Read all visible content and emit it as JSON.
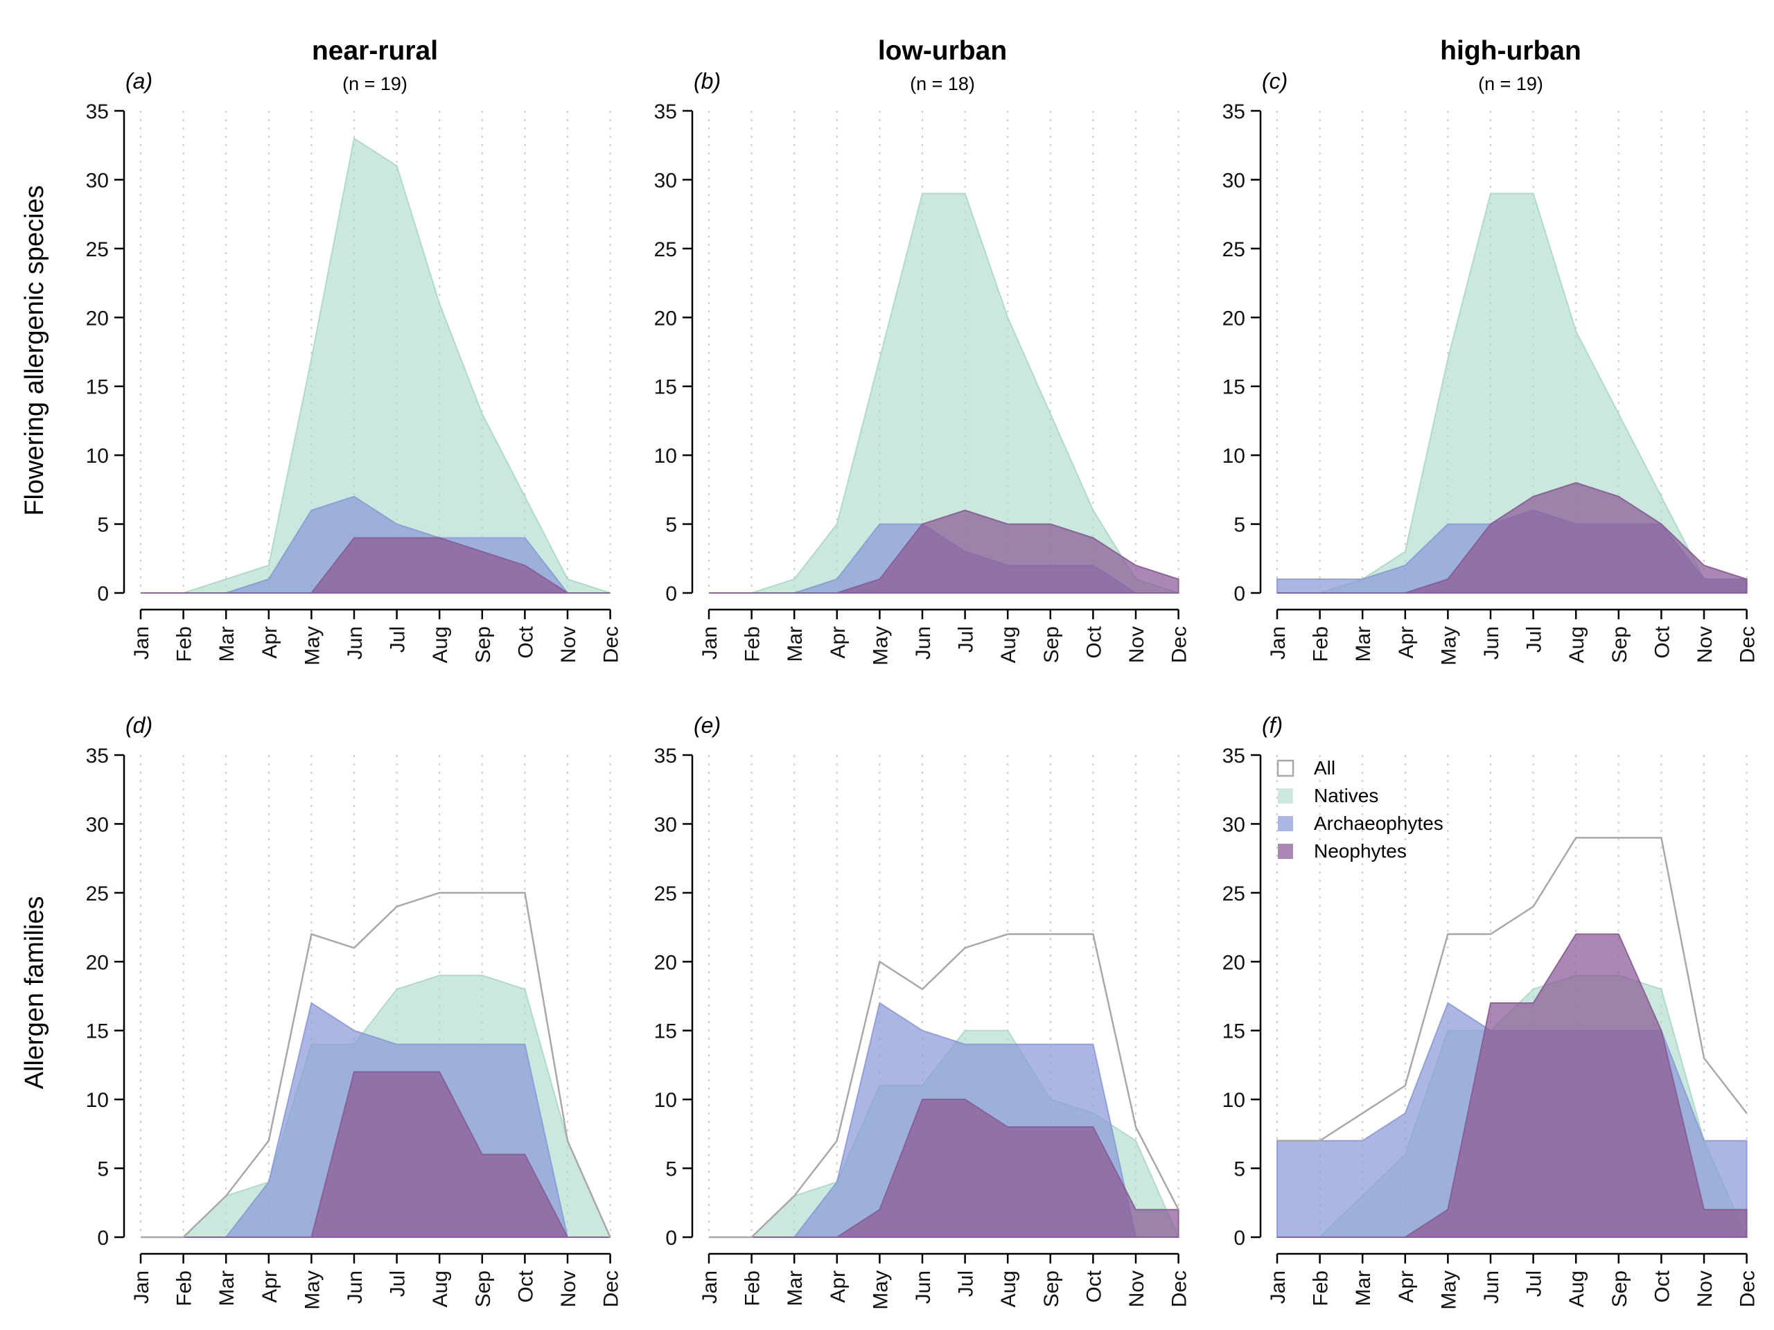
{
  "figure": {
    "row_labels": [
      "Flowering allergenic species",
      "Allergen families"
    ],
    "column_titles": [
      {
        "title": "near-rural",
        "subtitle": "(n = 19)"
      },
      {
        "title": "low-urban",
        "subtitle": "(n = 18)"
      },
      {
        "title": "high-urban",
        "subtitle": "(n = 19)"
      }
    ],
    "colors": {
      "All": "#a8a8a8",
      "Natives": "#a8d8c8",
      "Archaeophytes": "#8a9ad8",
      "Neophytes": "#8a5a96",
      "grid": "#cccccc",
      "axis": "#000000"
    },
    "legend": {
      "placement": "top-left of panel (f)",
      "entries": [
        {
          "label": "All",
          "key": "All",
          "style": "outline"
        },
        {
          "label": "Natives",
          "key": "Natives",
          "style": "fill"
        },
        {
          "label": "Archaeophytes",
          "key": "Archaeophytes",
          "style": "fill"
        },
        {
          "label": "Neophytes",
          "key": "Neophytes",
          "style": "fill"
        }
      ]
    }
  },
  "chart_data": [
    {
      "panel": "(a)",
      "type": "area",
      "title": "near-rural",
      "subtitle": "(n = 19)",
      "ylabel": "Flowering allergenic species",
      "ylim": [
        0,
        35
      ],
      "yticks": [
        0,
        5,
        10,
        15,
        20,
        25,
        30,
        35
      ],
      "categories": [
        "Jan",
        "Feb",
        "Mar",
        "Apr",
        "May",
        "Jun",
        "Jul",
        "Aug",
        "Sep",
        "Oct",
        "Nov",
        "Dec"
      ],
      "grid": "vertical dotted at months",
      "series": [
        {
          "name": "Natives",
          "values": [
            0,
            0,
            1,
            2,
            17,
            33,
            31,
            21,
            13,
            7,
            1,
            0
          ]
        },
        {
          "name": "Archaeophytes",
          "values": [
            0,
            0,
            0,
            1,
            6,
            7,
            5,
            4,
            4,
            4,
            0,
            0
          ]
        },
        {
          "name": "Neophytes",
          "values": [
            0,
            0,
            0,
            0,
            0,
            4,
            4,
            4,
            3,
            2,
            0,
            0
          ]
        }
      ]
    },
    {
      "panel": "(b)",
      "type": "area",
      "title": "low-urban",
      "subtitle": "(n = 18)",
      "ylim": [
        0,
        35
      ],
      "yticks": [
        0,
        5,
        10,
        15,
        20,
        25,
        30,
        35
      ],
      "categories": [
        "Jan",
        "Feb",
        "Mar",
        "Apr",
        "May",
        "Jun",
        "Jul",
        "Aug",
        "Sep",
        "Oct",
        "Nov",
        "Dec"
      ],
      "grid": "vertical dotted at months",
      "series": [
        {
          "name": "Natives",
          "values": [
            0,
            0,
            1,
            5,
            17,
            29,
            29,
            20,
            13,
            6,
            1,
            0
          ]
        },
        {
          "name": "Archaeophytes",
          "values": [
            0,
            0,
            0,
            1,
            5,
            5,
            3,
            2,
            2,
            2,
            0,
            0
          ]
        },
        {
          "name": "Neophytes",
          "values": [
            0,
            0,
            0,
            0,
            1,
            5,
            6,
            5,
            5,
            4,
            2,
            1
          ]
        }
      ]
    },
    {
      "panel": "(c)",
      "type": "area",
      "title": "high-urban",
      "subtitle": "(n = 19)",
      "ylim": [
        0,
        35
      ],
      "yticks": [
        0,
        5,
        10,
        15,
        20,
        25,
        30,
        35
      ],
      "categories": [
        "Jan",
        "Feb",
        "Mar",
        "Apr",
        "May",
        "Jun",
        "Jul",
        "Aug",
        "Sep",
        "Oct",
        "Nov",
        "Dec"
      ],
      "grid": "vertical dotted at months",
      "series": [
        {
          "name": "Natives",
          "values": [
            0,
            0,
            1,
            3,
            17,
            29,
            29,
            19,
            13,
            7,
            1,
            1
          ]
        },
        {
          "name": "Archaeophytes",
          "values": [
            1,
            1,
            1,
            2,
            5,
            5,
            6,
            5,
            5,
            5,
            1,
            1
          ]
        },
        {
          "name": "Neophytes",
          "values": [
            0,
            0,
            0,
            0,
            1,
            5,
            7,
            8,
            7,
            5,
            2,
            1
          ]
        }
      ]
    },
    {
      "panel": "(d)",
      "type": "area",
      "ylabel": "Allergen families",
      "ylim": [
        0,
        35
      ],
      "yticks": [
        0,
        5,
        10,
        15,
        20,
        25,
        30,
        35
      ],
      "categories": [
        "Jan",
        "Feb",
        "Mar",
        "Apr",
        "May",
        "Jun",
        "Jul",
        "Aug",
        "Sep",
        "Oct",
        "Nov",
        "Dec"
      ],
      "grid": "vertical dotted at months",
      "series": [
        {
          "name": "All",
          "values": [
            0,
            0,
            3,
            7,
            22,
            21,
            24,
            25,
            25,
            25,
            7,
            0
          ]
        },
        {
          "name": "Natives",
          "values": [
            0,
            0,
            3,
            4,
            14,
            14,
            18,
            19,
            19,
            18,
            7,
            0
          ]
        },
        {
          "name": "Archaeophytes",
          "values": [
            0,
            0,
            0,
            4,
            17,
            15,
            14,
            14,
            14,
            14,
            0,
            0
          ]
        },
        {
          "name": "Neophytes",
          "values": [
            0,
            0,
            0,
            0,
            0,
            12,
            12,
            12,
            6,
            6,
            0,
            0
          ]
        }
      ]
    },
    {
      "panel": "(e)",
      "type": "area",
      "ylim": [
        0,
        35
      ],
      "yticks": [
        0,
        5,
        10,
        15,
        20,
        25,
        30,
        35
      ],
      "categories": [
        "Jan",
        "Feb",
        "Mar",
        "Apr",
        "May",
        "Jun",
        "Jul",
        "Aug",
        "Sep",
        "Oct",
        "Nov",
        "Dec"
      ],
      "grid": "vertical dotted at months",
      "series": [
        {
          "name": "All",
          "values": [
            0,
            0,
            3,
            7,
            20,
            18,
            21,
            22,
            22,
            22,
            8,
            2
          ]
        },
        {
          "name": "Natives",
          "values": [
            0,
            0,
            3,
            4,
            11,
            11,
            15,
            15,
            10,
            9,
            7,
            0
          ]
        },
        {
          "name": "Archaeophytes",
          "values": [
            0,
            0,
            0,
            4,
            17,
            15,
            14,
            14,
            14,
            14,
            0,
            0
          ]
        },
        {
          "name": "Neophytes",
          "values": [
            0,
            0,
            0,
            0,
            2,
            10,
            10,
            8,
            8,
            8,
            2,
            2
          ]
        }
      ]
    },
    {
      "panel": "(f)",
      "type": "area",
      "ylim": [
        0,
        35
      ],
      "yticks": [
        0,
        5,
        10,
        15,
        20,
        25,
        30,
        35
      ],
      "categories": [
        "Jan",
        "Feb",
        "Mar",
        "Apr",
        "May",
        "Jun",
        "Jul",
        "Aug",
        "Sep",
        "Oct",
        "Nov",
        "Dec"
      ],
      "grid": "vertical dotted at months",
      "legend": "top-left",
      "series": [
        {
          "name": "All",
          "values": [
            7,
            7,
            9,
            11,
            22,
            22,
            24,
            29,
            29,
            29,
            13,
            9
          ]
        },
        {
          "name": "Natives",
          "values": [
            0,
            0,
            3,
            6,
            15,
            15,
            18,
            19,
            19,
            18,
            7,
            0
          ]
        },
        {
          "name": "Archaeophytes",
          "values": [
            7,
            7,
            7,
            9,
            17,
            15,
            15,
            15,
            15,
            15,
            7,
            7
          ]
        },
        {
          "name": "Neophytes",
          "values": [
            0,
            0,
            0,
            0,
            2,
            17,
            17,
            22,
            22,
            15,
            2,
            2
          ]
        }
      ]
    }
  ]
}
